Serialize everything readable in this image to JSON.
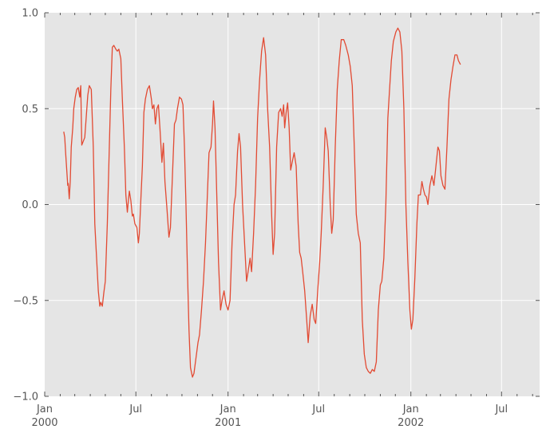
{
  "chart_data": {
    "type": "line",
    "title": "",
    "xlabel": "",
    "ylabel": "",
    "x_range": [
      "2000-01-01",
      "2002-09-15"
    ],
    "ylim": [
      -1.0,
      1.0
    ],
    "grid": true,
    "legend": "none",
    "colors": {
      "background": "#e5e5e5",
      "grid": "#ffffff",
      "line": "#e24a33",
      "tick_label": "#555555"
    },
    "y_ticks": [
      {
        "value": 1.0,
        "label": "1.0"
      },
      {
        "value": 0.5,
        "label": "0.5"
      },
      {
        "value": 0.0,
        "label": "0.0"
      },
      {
        "value": -0.5,
        "label": "−0.5"
      },
      {
        "value": -1.0,
        "label": "−1.0"
      }
    ],
    "x_major_ticks": [
      {
        "date": "2000-01-01",
        "label": "Jan",
        "sublabel": "2000"
      },
      {
        "date": "2000-07-01",
        "label": "Jul",
        "sublabel": ""
      },
      {
        "date": "2001-01-01",
        "label": "Jan",
        "sublabel": "2001"
      },
      {
        "date": "2001-07-01",
        "label": "Jul",
        "sublabel": ""
      },
      {
        "date": "2002-01-01",
        "label": "Jan",
        "sublabel": "2002"
      },
      {
        "date": "2002-07-01",
        "label": "Jul",
        "sublabel": ""
      }
    ],
    "x_minor_ticks": [
      "2000-02-01",
      "2000-03-01",
      "2000-04-01",
      "2000-05-01",
      "2000-06-01",
      "2000-08-01",
      "2000-09-01",
      "2000-10-01",
      "2000-11-01",
      "2000-12-01",
      "2001-02-01",
      "2001-03-01",
      "2001-04-01",
      "2001-05-01",
      "2001-06-01",
      "2001-08-01",
      "2001-09-01",
      "2001-10-01",
      "2001-11-01",
      "2001-12-01",
      "2002-02-01",
      "2002-03-01",
      "2002-04-01",
      "2002-05-01",
      "2002-06-01",
      "2002-08-01",
      "2002-09-01"
    ],
    "series": [
      {
        "points": [
          [
            "2000-02-08",
            0.38
          ],
          [
            "2000-02-10",
            0.35
          ],
          [
            "2000-02-12",
            0.26
          ],
          [
            "2000-02-14",
            0.18
          ],
          [
            "2000-02-16",
            0.1
          ],
          [
            "2000-02-17",
            0.11
          ],
          [
            "2000-02-19",
            0.03
          ],
          [
            "2000-02-21",
            0.12
          ],
          [
            "2000-02-23",
            0.3
          ],
          [
            "2000-02-26",
            0.4
          ],
          [
            "2000-02-28",
            0.5
          ],
          [
            "2000-03-02",
            0.56
          ],
          [
            "2000-03-05",
            0.6
          ],
          [
            "2000-03-08",
            0.61
          ],
          [
            "2000-03-11",
            0.56
          ],
          [
            "2000-03-13",
            0.62
          ],
          [
            "2000-03-15",
            0.31
          ],
          [
            "2000-03-18",
            0.33
          ],
          [
            "2000-03-21",
            0.35
          ],
          [
            "2000-03-24",
            0.46
          ],
          [
            "2000-03-27",
            0.57
          ],
          [
            "2000-03-30",
            0.62
          ],
          [
            "2000-04-03",
            0.6
          ],
          [
            "2000-04-07",
            0.3
          ],
          [
            "2000-04-10",
            -0.1
          ],
          [
            "2000-04-14",
            -0.3
          ],
          [
            "2000-04-17",
            -0.45
          ],
          [
            "2000-04-20",
            -0.53
          ],
          [
            "2000-04-22",
            -0.51
          ],
          [
            "2000-04-25",
            -0.53
          ],
          [
            "2000-04-28",
            -0.46
          ],
          [
            "2000-05-01",
            -0.4
          ],
          [
            "2000-05-05",
            -0.1
          ],
          [
            "2000-05-08",
            0.2
          ],
          [
            "2000-05-12",
            0.6
          ],
          [
            "2000-05-15",
            0.82
          ],
          [
            "2000-05-18",
            0.83
          ],
          [
            "2000-05-22",
            0.81
          ],
          [
            "2000-05-25",
            0.8
          ],
          [
            "2000-05-28",
            0.81
          ],
          [
            "2000-06-01",
            0.76
          ],
          [
            "2000-06-04",
            0.55
          ],
          [
            "2000-06-08",
            0.3
          ],
          [
            "2000-06-11",
            0.05
          ],
          [
            "2000-06-14",
            -0.04
          ],
          [
            "2000-06-16",
            0.02
          ],
          [
            "2000-06-18",
            0.07
          ],
          [
            "2000-06-21",
            0.02
          ],
          [
            "2000-06-24",
            -0.06
          ],
          [
            "2000-06-26",
            -0.05
          ],
          [
            "2000-06-29",
            -0.1
          ],
          [
            "2000-07-03",
            -0.12
          ],
          [
            "2000-07-06",
            -0.2
          ],
          [
            "2000-07-08",
            -0.15
          ],
          [
            "2000-07-11",
            0.03
          ],
          [
            "2000-07-14",
            0.2
          ],
          [
            "2000-07-17",
            0.48
          ],
          [
            "2000-07-20",
            0.55
          ],
          [
            "2000-07-24",
            0.6
          ],
          [
            "2000-07-28",
            0.62
          ],
          [
            "2000-08-01",
            0.55
          ],
          [
            "2000-08-03",
            0.5
          ],
          [
            "2000-08-06",
            0.52
          ],
          [
            "2000-08-09",
            0.42
          ],
          [
            "2000-08-12",
            0.5
          ],
          [
            "2000-08-15",
            0.52
          ],
          [
            "2000-08-18",
            0.4
          ],
          [
            "2000-08-22",
            0.22
          ],
          [
            "2000-08-25",
            0.32
          ],
          [
            "2000-08-28",
            0.12
          ],
          [
            "2000-09-01",
            -0.02
          ],
          [
            "2000-09-05",
            -0.17
          ],
          [
            "2000-09-08",
            -0.12
          ],
          [
            "2000-09-12",
            0.15
          ],
          [
            "2000-09-16",
            0.42
          ],
          [
            "2000-09-19",
            0.44
          ],
          [
            "2000-09-22",
            0.5
          ],
          [
            "2000-09-26",
            0.56
          ],
          [
            "2000-09-30",
            0.55
          ],
          [
            "2000-10-03",
            0.52
          ],
          [
            "2000-10-06",
            0.3
          ],
          [
            "2000-10-09",
            0.0
          ],
          [
            "2000-10-12",
            -0.35
          ],
          [
            "2000-10-15",
            -0.65
          ],
          [
            "2000-10-18",
            -0.85
          ],
          [
            "2000-10-22",
            -0.9
          ],
          [
            "2000-10-25",
            -0.88
          ],
          [
            "2000-10-29",
            -0.8
          ],
          [
            "2000-11-02",
            -0.72
          ],
          [
            "2000-11-05",
            -0.68
          ],
          [
            "2000-11-09",
            -0.55
          ],
          [
            "2000-11-13",
            -0.4
          ],
          [
            "2000-11-17",
            -0.2
          ],
          [
            "2000-11-20",
            0.0
          ],
          [
            "2000-11-24",
            0.27
          ],
          [
            "2000-11-28",
            0.3
          ],
          [
            "2000-12-01",
            0.42
          ],
          [
            "2000-12-03",
            0.54
          ],
          [
            "2000-12-06",
            0.4
          ],
          [
            "2000-12-10",
            0.0
          ],
          [
            "2000-12-13",
            -0.3
          ],
          [
            "2000-12-17",
            -0.55
          ],
          [
            "2000-12-20",
            -0.5
          ],
          [
            "2000-12-24",
            -0.45
          ],
          [
            "2000-12-28",
            -0.52
          ],
          [
            "2001-01-01",
            -0.55
          ],
          [
            "2001-01-05",
            -0.5
          ],
          [
            "2001-01-09",
            -0.2
          ],
          [
            "2001-01-13",
            0.0
          ],
          [
            "2001-01-16",
            0.05
          ],
          [
            "2001-01-20",
            0.28
          ],
          [
            "2001-01-23",
            0.37
          ],
          [
            "2001-01-26",
            0.3
          ],
          [
            "2001-01-30",
            0.0
          ],
          [
            "2001-02-03",
            -0.2
          ],
          [
            "2001-02-07",
            -0.4
          ],
          [
            "2001-02-10",
            -0.35
          ],
          [
            "2001-02-14",
            -0.28
          ],
          [
            "2001-02-17",
            -0.35
          ],
          [
            "2001-02-21",
            -0.15
          ],
          [
            "2001-02-25",
            0.1
          ],
          [
            "2001-03-01",
            0.45
          ],
          [
            "2001-03-05",
            0.65
          ],
          [
            "2001-03-09",
            0.8
          ],
          [
            "2001-03-13",
            0.87
          ],
          [
            "2001-03-17",
            0.78
          ],
          [
            "2001-03-21",
            0.5
          ],
          [
            "2001-03-25",
            0.3
          ],
          [
            "2001-03-29",
            -0.05
          ],
          [
            "2001-04-01",
            -0.26
          ],
          [
            "2001-04-04",
            -0.15
          ],
          [
            "2001-04-08",
            0.3
          ],
          [
            "2001-04-12",
            0.48
          ],
          [
            "2001-04-16",
            0.5
          ],
          [
            "2001-04-19",
            0.46
          ],
          [
            "2001-04-22",
            0.52
          ],
          [
            "2001-04-24",
            0.4
          ],
          [
            "2001-04-27",
            0.48
          ],
          [
            "2001-04-30",
            0.53
          ],
          [
            "2001-05-03",
            0.4
          ],
          [
            "2001-05-06",
            0.18
          ],
          [
            "2001-05-09",
            0.22
          ],
          [
            "2001-05-13",
            0.27
          ],
          [
            "2001-05-17",
            0.2
          ],
          [
            "2001-05-21",
            -0.1
          ],
          [
            "2001-05-24",
            -0.25
          ],
          [
            "2001-05-27",
            -0.28
          ],
          [
            "2001-05-30",
            -0.35
          ],
          [
            "2001-06-03",
            -0.45
          ],
          [
            "2001-06-07",
            -0.6
          ],
          [
            "2001-06-10",
            -0.72
          ],
          [
            "2001-06-14",
            -0.58
          ],
          [
            "2001-06-18",
            -0.52
          ],
          [
            "2001-06-22",
            -0.6
          ],
          [
            "2001-06-25",
            -0.62
          ],
          [
            "2001-06-29",
            -0.45
          ],
          [
            "2001-07-03",
            -0.3
          ],
          [
            "2001-07-06",
            -0.15
          ],
          [
            "2001-07-10",
            0.1
          ],
          [
            "2001-07-14",
            0.4
          ],
          [
            "2001-07-17",
            0.35
          ],
          [
            "2001-07-20",
            0.28
          ],
          [
            "2001-07-24",
            0.0
          ],
          [
            "2001-07-27",
            -0.15
          ],
          [
            "2001-07-30",
            -0.08
          ],
          [
            "2001-08-03",
            0.3
          ],
          [
            "2001-08-07",
            0.6
          ],
          [
            "2001-08-11",
            0.75
          ],
          [
            "2001-08-15",
            0.86
          ],
          [
            "2001-08-20",
            0.86
          ],
          [
            "2001-08-24",
            0.83
          ],
          [
            "2001-08-29",
            0.78
          ],
          [
            "2001-09-02",
            0.72
          ],
          [
            "2001-09-06",
            0.62
          ],
          [
            "2001-09-10",
            0.3
          ],
          [
            "2001-09-14",
            -0.05
          ],
          [
            "2001-09-18",
            -0.15
          ],
          [
            "2001-09-22",
            -0.2
          ],
          [
            "2001-09-26",
            -0.6
          ],
          [
            "2001-09-30",
            -0.78
          ],
          [
            "2001-10-04",
            -0.85
          ],
          [
            "2001-10-08",
            -0.87
          ],
          [
            "2001-10-12",
            -0.88
          ],
          [
            "2001-10-16",
            -0.86
          ],
          [
            "2001-10-20",
            -0.87
          ],
          [
            "2001-10-24",
            -0.82
          ],
          [
            "2001-10-28",
            -0.55
          ],
          [
            "2001-11-01",
            -0.42
          ],
          [
            "2001-11-04",
            -0.4
          ],
          [
            "2001-11-08",
            -0.28
          ],
          [
            "2001-11-12",
            0.0
          ],
          [
            "2001-11-16",
            0.45
          ],
          [
            "2001-11-19",
            0.58
          ],
          [
            "2001-11-23",
            0.75
          ],
          [
            "2001-11-27",
            0.85
          ],
          [
            "2001-12-02",
            0.9
          ],
          [
            "2001-12-06",
            0.92
          ],
          [
            "2001-12-10",
            0.9
          ],
          [
            "2001-12-14",
            0.8
          ],
          [
            "2001-12-18",
            0.5
          ],
          [
            "2001-12-22",
            0.0
          ],
          [
            "2001-12-26",
            -0.3
          ],
          [
            "2001-12-30",
            -0.55
          ],
          [
            "2002-01-02",
            -0.65
          ],
          [
            "2002-01-05",
            -0.6
          ],
          [
            "2002-01-09",
            -0.38
          ],
          [
            "2002-01-13",
            -0.1
          ],
          [
            "2002-01-16",
            0.05
          ],
          [
            "2002-01-20",
            0.05
          ],
          [
            "2002-01-23",
            0.12
          ],
          [
            "2002-01-26",
            0.08
          ],
          [
            "2002-01-29",
            0.05
          ],
          [
            "2002-02-01",
            0.04
          ],
          [
            "2002-02-04",
            0.0
          ],
          [
            "2002-02-08",
            0.1
          ],
          [
            "2002-02-12",
            0.15
          ],
          [
            "2002-02-16",
            0.1
          ],
          [
            "2002-02-20",
            0.2
          ],
          [
            "2002-02-24",
            0.3
          ],
          [
            "2002-02-27",
            0.28
          ],
          [
            "2002-03-02",
            0.15
          ],
          [
            "2002-03-06",
            0.1
          ],
          [
            "2002-03-10",
            0.08
          ],
          [
            "2002-03-14",
            0.3
          ],
          [
            "2002-03-18",
            0.55
          ],
          [
            "2002-03-22",
            0.65
          ],
          [
            "2002-03-26",
            0.72
          ],
          [
            "2002-03-30",
            0.78
          ],
          [
            "2002-04-03",
            0.78
          ],
          [
            "2002-04-06",
            0.75
          ],
          [
            "2002-04-10",
            0.73
          ]
        ]
      }
    ]
  }
}
